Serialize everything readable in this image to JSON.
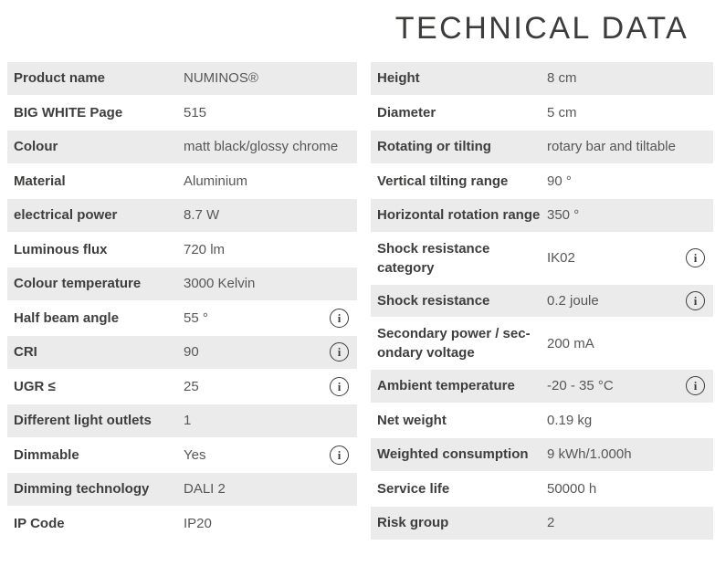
{
  "title": "TECHNICAL DATA",
  "info_icon_glyph": "i",
  "colors": {
    "row_stripe": "#ebebeb",
    "label_text": "#3e3e3d",
    "value_text": "#575756",
    "title_text": "#3c3c3b",
    "icon_outline": "#3c3c3b"
  },
  "tables": {
    "left": {
      "rows": [
        {
          "label": "Product name",
          "value": "NUMINOS®",
          "info": false
        },
        {
          "label": "BIG WHITE Page",
          "value": "515",
          "info": false
        },
        {
          "label": "Colour",
          "value": "matt black/glossy chrome",
          "info": false
        },
        {
          "label": "Material",
          "value": "Aluminium",
          "info": false
        },
        {
          "label": "electrical power",
          "value": "8.7 W",
          "info": false
        },
        {
          "label": "Luminous flux",
          "value": "720 lm",
          "info": false
        },
        {
          "label": "Colour temperature",
          "value": "3000 Kelvin",
          "info": false
        },
        {
          "label": "Half beam angle",
          "value": "55 °",
          "info": true
        },
        {
          "label": "CRI",
          "value": "90",
          "info": true
        },
        {
          "label": "UGR ≤",
          "value": "25",
          "info": true
        },
        {
          "label": "Different light outlets",
          "value": "1",
          "info": false
        },
        {
          "label": "Dimmable",
          "value": "Yes",
          "info": true
        },
        {
          "label": "Dimming technology",
          "value": "DALI 2",
          "info": false
        },
        {
          "label": "IP Code",
          "value": "IP20",
          "info": false
        }
      ]
    },
    "right": {
      "rows": [
        {
          "label": "Height",
          "value": "8 cm",
          "info": false
        },
        {
          "label": "Diameter",
          "value": "5 cm",
          "info": false
        },
        {
          "label": "Rotating or tilting",
          "value": "rotary bar and tiltable",
          "info": false
        },
        {
          "label": "Vertical tilting range",
          "value": "90 °",
          "info": false
        },
        {
          "label": "Horizontal rotation range",
          "value": "350 °",
          "info": false
        },
        {
          "label": "Shock resistance category",
          "value": "IK02",
          "info": true
        },
        {
          "label": "Shock resistance",
          "value": "0.2 joule",
          "info": true
        },
        {
          "label": "Secondary power / sec­ondary voltage",
          "value": "200 mA",
          "info": false
        },
        {
          "label": "Ambient temperature",
          "value": "-20 - 35 °C",
          "info": true
        },
        {
          "label": "Net weight",
          "value": "0.19 kg",
          "info": false
        },
        {
          "label": "Weighted consumption",
          "value": "9 kWh/1.000h",
          "info": false
        },
        {
          "label": "Service life",
          "value": "50000 h",
          "info": false
        },
        {
          "label": "Risk group",
          "value": "2",
          "info": false
        }
      ]
    }
  }
}
